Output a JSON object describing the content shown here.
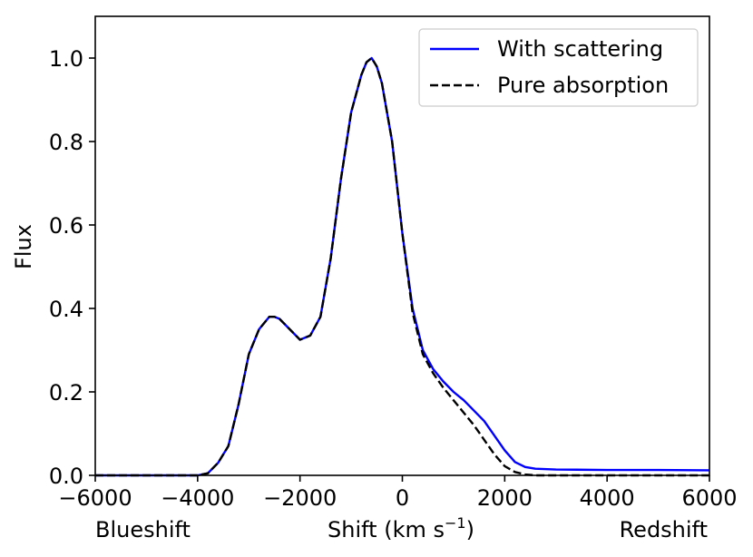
{
  "chart_data": {
    "type": "line",
    "xlabel": "Shift (km s",
    "xlabel_sup": "−1",
    "xlabel_close": ")",
    "ylabel": "Flux",
    "annotations": {
      "left": "Blueshift",
      "right": "Redshift"
    },
    "xlim": [
      -6000,
      6000
    ],
    "ylim": [
      0.0,
      1.1
    ],
    "xticks": [
      -6000,
      -4000,
      -2000,
      0,
      2000,
      4000,
      6000
    ],
    "xtick_labels": [
      "−6000",
      "−4000",
      "−2000",
      "0",
      "2000",
      "4000",
      "6000"
    ],
    "yticks": [
      0.0,
      0.2,
      0.4,
      0.6,
      0.8,
      1.0
    ],
    "ytick_labels": [
      "0.0",
      "0.2",
      "0.4",
      "0.6",
      "0.8",
      "1.0"
    ],
    "grid": false,
    "legend_position": "top-right",
    "series": [
      {
        "name": "With scattering",
        "color": "#0000ff",
        "style": "solid",
        "x": [
          -6000,
          -4200,
          -4000,
          -3800,
          -3600,
          -3400,
          -3200,
          -3000,
          -2800,
          -2600,
          -2500,
          -2400,
          -2200,
          -2000,
          -1800,
          -1600,
          -1400,
          -1200,
          -1000,
          -800,
          -700,
          -600,
          -500,
          -400,
          -200,
          0,
          200,
          400,
          600,
          800,
          1000,
          1200,
          1400,
          1600,
          1800,
          2000,
          2200,
          2400,
          2600,
          3000,
          4000,
          5000,
          6000
        ],
        "y": [
          0.0,
          0.0,
          0.0,
          0.005,
          0.03,
          0.07,
          0.17,
          0.29,
          0.35,
          0.38,
          0.38,
          0.375,
          0.35,
          0.325,
          0.335,
          0.38,
          0.52,
          0.71,
          0.87,
          0.96,
          0.99,
          1.0,
          0.98,
          0.94,
          0.8,
          0.58,
          0.4,
          0.3,
          0.255,
          0.225,
          0.2,
          0.18,
          0.155,
          0.13,
          0.095,
          0.06,
          0.032,
          0.02,
          0.016,
          0.014,
          0.013,
          0.013,
          0.012
        ]
      },
      {
        "name": "Pure absorption",
        "color": "#000000",
        "style": "dashed",
        "x": [
          -6000,
          -4200,
          -4000,
          -3800,
          -3600,
          -3400,
          -3200,
          -3000,
          -2800,
          -2600,
          -2500,
          -2400,
          -2200,
          -2000,
          -1800,
          -1600,
          -1400,
          -1200,
          -1000,
          -800,
          -700,
          -600,
          -500,
          -400,
          -200,
          0,
          200,
          400,
          600,
          800,
          1000,
          1200,
          1400,
          1600,
          1800,
          2000,
          2200,
          2400,
          2600,
          3000,
          4000,
          5000,
          6000
        ],
        "y": [
          0.0,
          0.0,
          0.0,
          0.005,
          0.03,
          0.07,
          0.17,
          0.29,
          0.35,
          0.38,
          0.38,
          0.375,
          0.35,
          0.325,
          0.335,
          0.38,
          0.52,
          0.71,
          0.87,
          0.96,
          0.99,
          1.0,
          0.98,
          0.94,
          0.8,
          0.58,
          0.39,
          0.29,
          0.245,
          0.21,
          0.18,
          0.15,
          0.12,
          0.085,
          0.05,
          0.022,
          0.008,
          0.002,
          0.0,
          0.0,
          0.0,
          0.0,
          0.0
        ]
      }
    ]
  }
}
